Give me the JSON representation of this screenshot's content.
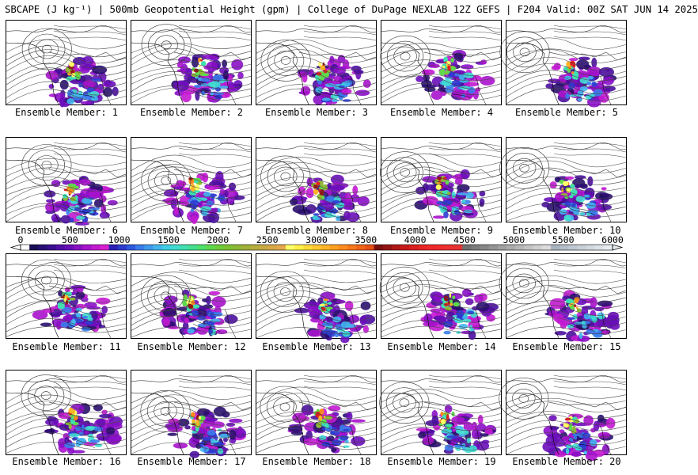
{
  "header": {
    "title": "SBCAPE (J kg⁻¹) | 500mb Geopotential Height (gpm) | College of DuPage NEXLAB 12Z GEFS | F204 Valid: 00Z SAT JUN 14 2025"
  },
  "colorbar": {
    "ticks": [
      "0",
      "500",
      "1000",
      "1500",
      "2000",
      "2500",
      "3000",
      "3500",
      "4000",
      "4500",
      "5000",
      "5500",
      "6000"
    ],
    "min": 0,
    "max": 6000,
    "colors": [
      "#ffffff",
      "#1a0f55",
      "#2a1075",
      "#3a0f90",
      "#520fa8",
      "#6a0eba",
      "#8a10c6",
      "#a813cc",
      "#c21ad0",
      "#d820d0",
      "#2b1fb8",
      "#2d3bd0",
      "#2f5ae0",
      "#3a7cea",
      "#3f9aee",
      "#43b6ee",
      "#3fcfe6",
      "#3fdcd0",
      "#40e0b0",
      "#43e090",
      "#4fe06c",
      "#5fd84e",
      "#6ecc3a",
      "#7ec234",
      "#8eb836",
      "#a0b23a",
      "#b6ae3e",
      "#c8aa42",
      "#d8a848",
      "#e6a84c",
      "#ffff66",
      "#fff048",
      "#ffdc3a",
      "#ffc830",
      "#ffb428",
      "#ffa020",
      "#ff8c1c",
      "#f8781a",
      "#f06418",
      "#e85016",
      "#7a1010",
      "#951414",
      "#b01818",
      "#c81c1c",
      "#dc2020",
      "#e82424",
      "#f02828",
      "#f02c2c",
      "#ee3030",
      "#e83434",
      "#707070",
      "#7c7c7c",
      "#888888",
      "#949494",
      "#a0a0a0",
      "#acacac",
      "#b8b8b8",
      "#c4c4c4",
      "#d0d0d0",
      "#dcdcdc",
      "#aab4c0",
      "#b4bec8",
      "#bec8d0",
      "#c8d0d8",
      "#d2dae0",
      "#dce2e8",
      "#e6ecf0"
    ]
  },
  "members": [
    {
      "label": "Ensemble Member: 1"
    },
    {
      "label": "Ensemble Member: 2"
    },
    {
      "label": "Ensemble Member: 3"
    },
    {
      "label": "Ensemble Member: 4"
    },
    {
      "label": "Ensemble Member: 5"
    },
    {
      "label": "Ensemble Member: 6"
    },
    {
      "label": "Ensemble Member: 7"
    },
    {
      "label": "Ensemble Member: 8"
    },
    {
      "label": "Ensemble Member: 9"
    },
    {
      "label": "Ensemble Member: 10"
    },
    {
      "label": "Ensemble Member: 11"
    },
    {
      "label": "Ensemble Member: 12"
    },
    {
      "label": "Ensemble Member: 13"
    },
    {
      "label": "Ensemble Member: 14"
    },
    {
      "label": "Ensemble Member: 15"
    },
    {
      "label": "Ensemble Member: 16"
    },
    {
      "label": "Ensemble Member: 17"
    },
    {
      "label": "Ensemble Member: 18"
    },
    {
      "label": "Ensemble Member: 19"
    },
    {
      "label": "Ensemble Member: 20"
    }
  ]
}
